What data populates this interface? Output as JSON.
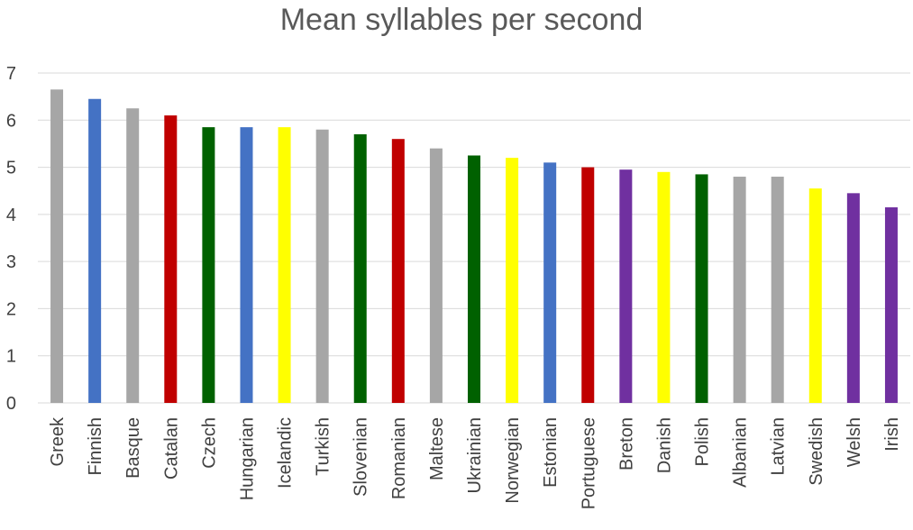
{
  "chart_data": {
    "type": "bar",
    "title": "Mean syllables per second",
    "xlabel": "",
    "ylabel": "",
    "ylim": [
      0,
      7
    ],
    "yticks": [
      0,
      1,
      2,
      3,
      4,
      5,
      6,
      7
    ],
    "grid": true,
    "legend": "none",
    "categories": [
      "Greek",
      "Finnish",
      "Basque",
      "Catalan",
      "Czech",
      "Hungarian",
      "Icelandic",
      "Turkish",
      "Slovenian",
      "Romanian",
      "Maltese",
      "Ukrainian",
      "Norwegian",
      "Estonian",
      "Portuguese",
      "Breton",
      "Danish",
      "Polish",
      "Albanian",
      "Latvian",
      "Swedish",
      "Welsh",
      "Irish"
    ],
    "values": [
      6.65,
      6.45,
      6.25,
      6.1,
      5.85,
      5.85,
      5.85,
      5.8,
      5.7,
      5.6,
      5.4,
      5.25,
      5.2,
      5.1,
      5.0,
      4.95,
      4.9,
      4.85,
      4.8,
      4.8,
      4.55,
      4.45,
      4.15
    ],
    "colors": [
      "#a6a6a6",
      "#4472c4",
      "#a6a6a6",
      "#c00000",
      "#006100",
      "#4472c4",
      "#ffff00",
      "#a6a6a6",
      "#006100",
      "#c00000",
      "#a6a6a6",
      "#006100",
      "#ffff00",
      "#4472c4",
      "#c00000",
      "#7030a0",
      "#ffff00",
      "#006100",
      "#a6a6a6",
      "#a6a6a6",
      "#ffff00",
      "#7030a0",
      "#7030a0"
    ]
  }
}
